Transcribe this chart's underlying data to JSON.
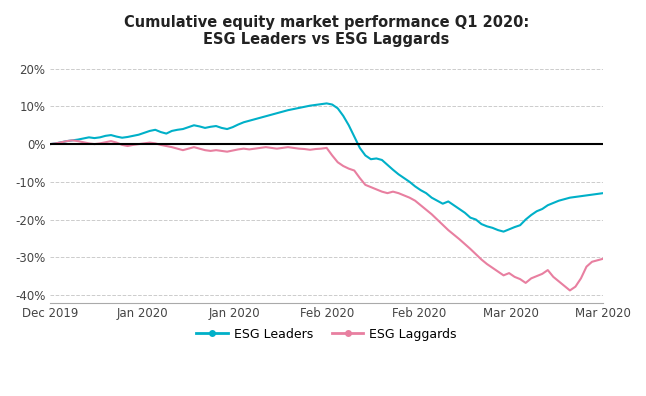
{
  "title_line1": "Cumulative equity market performance Q1 2020:",
  "title_line2": "ESG Leaders vs ESG Laggards",
  "title_fontsize": 10.5,
  "background_color": "#ffffff",
  "leaders_color": "#00B0C8",
  "laggards_color": "#E87FA0",
  "zero_line_color": "#000000",
  "grid_color": "#cccccc",
  "ylim": [
    -0.42,
    0.235
  ],
  "yticks": [
    -0.4,
    -0.3,
    -0.2,
    -0.1,
    0.0,
    0.1,
    0.2
  ],
  "ytick_labels": [
    "-40%",
    "-30%",
    "-20%",
    "-10%",
    "0%",
    "10%",
    "20%"
  ],
  "xtick_labels": [
    "Dec 2019",
    "Jan 2020",
    "Jan 2020",
    "Feb 2020",
    "Feb 2020",
    "Mar 2020",
    "Mar 2020"
  ],
  "legend_leaders": "ESG Leaders",
  "legend_laggards": "ESG Laggards",
  "leaders_y": [
    0.0,
    0.002,
    0.005,
    0.008,
    0.01,
    0.012,
    0.015,
    0.018,
    0.016,
    0.018,
    0.022,
    0.024,
    0.02,
    0.017,
    0.019,
    0.022,
    0.025,
    0.03,
    0.035,
    0.038,
    0.032,
    0.028,
    0.035,
    0.038,
    0.04,
    0.045,
    0.05,
    0.047,
    0.043,
    0.046,
    0.048,
    0.043,
    0.04,
    0.045,
    0.052,
    0.058,
    0.062,
    0.066,
    0.07,
    0.074,
    0.078,
    0.082,
    0.086,
    0.09,
    0.093,
    0.096,
    0.099,
    0.102,
    0.104,
    0.106,
    0.108,
    0.105,
    0.095,
    0.075,
    0.05,
    0.02,
    -0.01,
    -0.03,
    -0.04,
    -0.038,
    -0.042,
    -0.055,
    -0.068,
    -0.08,
    -0.09,
    -0.1,
    -0.112,
    -0.122,
    -0.13,
    -0.142,
    -0.15,
    -0.158,
    -0.152,
    -0.162,
    -0.172,
    -0.182,
    -0.195,
    -0.2,
    -0.212,
    -0.218,
    -0.222,
    -0.228,
    -0.232,
    -0.226,
    -0.22,
    -0.215,
    -0.2,
    -0.188,
    -0.178,
    -0.172,
    -0.162,
    -0.156,
    -0.15,
    -0.146,
    -0.142,
    -0.14,
    -0.138,
    -0.136,
    -0.134,
    -0.132,
    -0.13
  ],
  "laggards_y": [
    0.0,
    0.002,
    0.005,
    0.008,
    0.01,
    0.008,
    0.005,
    0.002,
    0.0,
    0.002,
    0.005,
    0.008,
    0.004,
    -0.002,
    -0.005,
    -0.002,
    0.0,
    0.002,
    0.004,
    0.002,
    -0.002,
    -0.005,
    -0.008,
    -0.012,
    -0.016,
    -0.012,
    -0.008,
    -0.012,
    -0.016,
    -0.018,
    -0.016,
    -0.018,
    -0.02,
    -0.017,
    -0.014,
    -0.012,
    -0.014,
    -0.012,
    -0.01,
    -0.008,
    -0.01,
    -0.012,
    -0.01,
    -0.008,
    -0.01,
    -0.012,
    -0.013,
    -0.015,
    -0.013,
    -0.012,
    -0.01,
    -0.03,
    -0.048,
    -0.058,
    -0.065,
    -0.07,
    -0.09,
    -0.108,
    -0.114,
    -0.12,
    -0.126,
    -0.13,
    -0.126,
    -0.13,
    -0.136,
    -0.142,
    -0.15,
    -0.162,
    -0.174,
    -0.186,
    -0.2,
    -0.214,
    -0.228,
    -0.24,
    -0.252,
    -0.265,
    -0.278,
    -0.292,
    -0.306,
    -0.318,
    -0.328,
    -0.338,
    -0.348,
    -0.342,
    -0.352,
    -0.358,
    -0.368,
    -0.356,
    -0.35,
    -0.344,
    -0.334,
    -0.352,
    -0.364,
    -0.376,
    -0.388,
    -0.378,
    -0.356,
    -0.325,
    -0.312,
    -0.308,
    -0.304
  ]
}
